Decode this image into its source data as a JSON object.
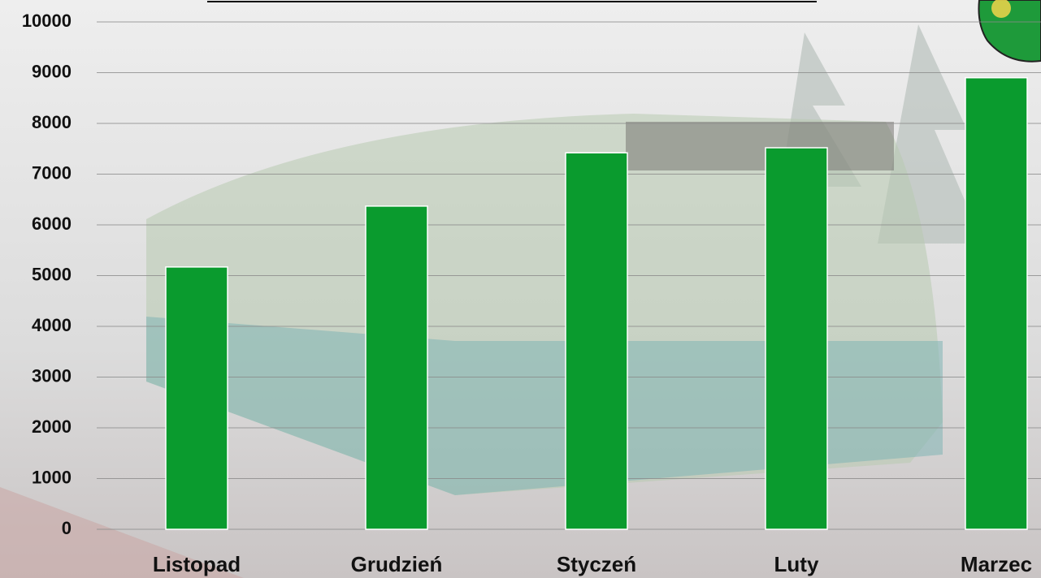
{
  "chart_data": {
    "type": "bar",
    "categories": [
      "Listopad",
      "Grudzień",
      "Styczeń",
      "Luty",
      "Marzec"
    ],
    "values": [
      5170,
      6370,
      7420,
      7520,
      8900
    ],
    "color": "#0a9b2e",
    "ylim": [
      0,
      10000
    ],
    "yticks": [
      0,
      1000,
      2000,
      3000,
      4000,
      5000,
      6000,
      7000,
      8000,
      9000,
      10000
    ],
    "grid": true
  }
}
